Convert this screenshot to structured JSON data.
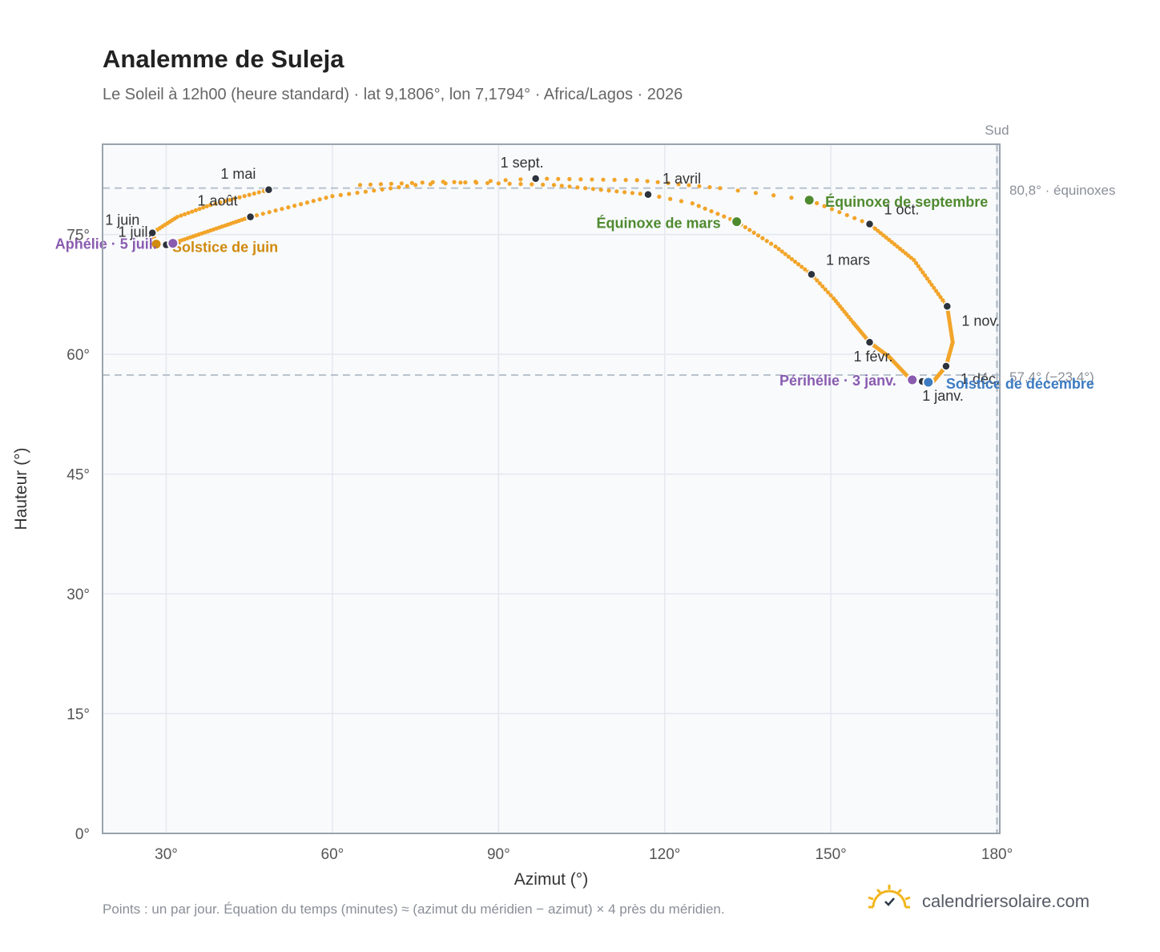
{
  "title": "Analemme de Suleja",
  "subtitle": "Le Soleil à 12h00 (heure standard) · lat 9,1806°, lon 7,1794° · Africa/Lagos · 2026",
  "footnote": "Points : un par jour. Équation du temps (minutes) ≈ (azimut du méridien − azimut) × 4 près du méridien.",
  "brand": "calendriersolaire.com",
  "chart_data": {
    "type": "scatter",
    "title": "Analemme de Suleja",
    "xlabel": "Azimut (°)",
    "ylabel": "Hauteur (°)",
    "xlim": [
      18.5,
      180.5
    ],
    "ylim": [
      0,
      86.3
    ],
    "xticks": [
      30,
      60,
      90,
      120,
      150,
      180
    ],
    "xtick_labels": [
      "30°",
      "60°",
      "90°",
      "120°",
      "150°",
      "180°"
    ],
    "yticks": [
      0,
      15,
      30,
      45,
      60,
      75
    ],
    "ytick_labels": [
      "0°",
      "15°",
      "30°",
      "45°",
      "60°",
      "75°"
    ],
    "grid": true,
    "reference_lines": {
      "vertical": {
        "x": 180,
        "label": "Sud"
      },
      "horizontal": [
        {
          "y": 80.8,
          "label": "80,8° · équinoxes"
        },
        {
          "y": 57.4,
          "label": "57,4° (−23,4°)"
        }
      ]
    },
    "colors": {
      "path": "#f2a429",
      "month": "#2d333d",
      "equinox": "#4f8a2f",
      "june_solstice": "#d08a0f",
      "december_solstice": "#3d7cc2",
      "apsis": "#8a5cb0",
      "grid": "#e4e8ee",
      "plot_bg": "#f8fafc",
      "frame": "#9aa3ae"
    },
    "months": [
      {
        "label": "1 janv.",
        "az": 166.5,
        "alt": 56.6
      },
      {
        "label": "1 févr.",
        "az": 157.0,
        "alt": 61.5
      },
      {
        "label": "1 mars",
        "az": 146.5,
        "alt": 70.0
      },
      {
        "label": "1 avril",
        "az": 117.0,
        "alt": 80.0
      },
      {
        "label": "1 mai",
        "az": 48.5,
        "alt": 80.6
      },
      {
        "label": "1 juin",
        "az": 27.5,
        "alt": 75.2
      },
      {
        "label": "1 juil.",
        "az": 30.0,
        "alt": 73.7
      },
      {
        "label": "1 août",
        "az": 45.2,
        "alt": 77.2
      },
      {
        "label": "1 sept.",
        "az": 96.7,
        "alt": 82.0
      },
      {
        "label": "1 oct.",
        "az": 157.0,
        "alt": 76.3
      },
      {
        "label": "1 nov.",
        "az": 171.0,
        "alt": 66.0
      },
      {
        "label": "1 déc.",
        "az": 170.8,
        "alt": 58.5
      }
    ],
    "events": [
      {
        "label": "Équinoxe de mars",
        "az": 133.0,
        "alt": 76.6,
        "color": "#4f8a2f"
      },
      {
        "label": "Équinoxe de septembre",
        "az": 146.1,
        "alt": 79.3,
        "color": "#4f8a2f"
      },
      {
        "label": "Solstice de juin",
        "az": 28.2,
        "alt": 73.8,
        "color": "#d08a0f"
      },
      {
        "label": "Solstice de décembre",
        "az": 167.6,
        "alt": 56.5,
        "color": "#3d7cc2"
      },
      {
        "label": "Aphélie · 5 juil.",
        "az": 31.2,
        "alt": 73.9,
        "color": "#8a5cb0"
      },
      {
        "label": "Périhélie · 3 janv.",
        "az": 164.7,
        "alt": 56.8,
        "color": "#8a5cb0"
      }
    ],
    "path_keypoints": [
      [
        166.5,
        56.6
      ],
      [
        164.5,
        56.8
      ],
      [
        163.5,
        57.5
      ],
      [
        160.5,
        59.7
      ],
      [
        157.0,
        61.5
      ],
      [
        154.0,
        64.0
      ],
      [
        150.5,
        67.0
      ],
      [
        146.5,
        70.0
      ],
      [
        140.0,
        73.5
      ],
      [
        133.0,
        76.6
      ],
      [
        125.0,
        78.9
      ],
      [
        117.0,
        80.0
      ],
      [
        100.0,
        81.2
      ],
      [
        80.0,
        81.6
      ],
      [
        65.0,
        81.2
      ],
      [
        48.5,
        80.6
      ],
      [
        38.0,
        78.7
      ],
      [
        32.0,
        77.2
      ],
      [
        27.5,
        75.2
      ],
      [
        28.2,
        73.8
      ],
      [
        30.0,
        73.7
      ],
      [
        31.2,
        73.9
      ],
      [
        38.0,
        75.5
      ],
      [
        45.2,
        77.2
      ],
      [
        60.0,
        79.8
      ],
      [
        75.0,
        81.2
      ],
      [
        96.7,
        82.0
      ],
      [
        115.0,
        81.8
      ],
      [
        130.0,
        80.8
      ],
      [
        146.1,
        79.3
      ],
      [
        157.0,
        76.3
      ],
      [
        165.0,
        71.8
      ],
      [
        171.0,
        66.0
      ],
      [
        172.0,
        61.5
      ],
      [
        170.8,
        58.5
      ],
      [
        168.5,
        56.6
      ],
      [
        166.5,
        56.6
      ]
    ],
    "path_days": [
      0,
      2,
      5,
      18,
      31,
      42,
      51,
      59,
      70,
      79,
      86,
      90,
      102,
      112,
      120,
      120,
      132,
      141,
      151,
      171,
      181,
      185,
      198,
      212,
      225,
      235,
      243,
      252,
      260,
      265,
      273,
      289,
      304,
      320,
      334,
      352,
      365
    ]
  }
}
